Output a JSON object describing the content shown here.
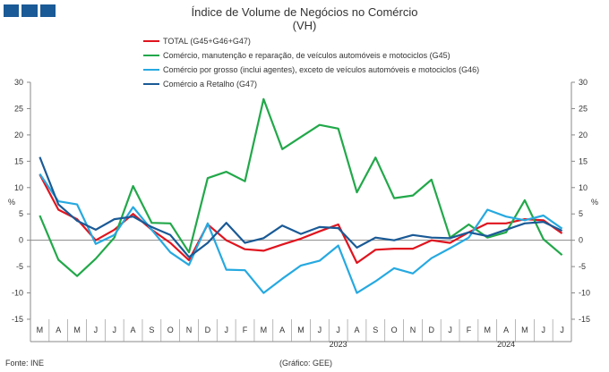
{
  "header": {
    "title": "Índice de Volume de Negócios no Comércio",
    "subtitle": "(VH)"
  },
  "footer": {
    "source": "Fonte: INE",
    "credit": "(Gráfico: GEE)"
  },
  "chart_data": {
    "type": "line",
    "title": "Índice de Volume de Negócios no Comércio",
    "subtitle": "(VH)",
    "ylabel": "%",
    "y2label": "%",
    "ylim": [
      -15,
      30
    ],
    "yticks": [
      -15,
      -10,
      -5,
      0,
      5,
      10,
      15,
      20,
      25,
      30
    ],
    "grid": false,
    "legend_position": "top",
    "categories": [
      "M",
      "A",
      "M",
      "J",
      "J",
      "A",
      "S",
      "O",
      "N",
      "D",
      "J",
      "F",
      "M",
      "A",
      "M",
      "J",
      "J",
      "A",
      "S",
      "O",
      "N",
      "D",
      "J",
      "F",
      "M",
      "A",
      "M",
      "J",
      "J"
    ],
    "year_labels": [
      {
        "label": "2023",
        "index": 16
      },
      {
        "label": "2024",
        "index": 25
      }
    ],
    "series": [
      {
        "name": "TOTAL (G45+G46+G47)",
        "color": "#e0141e",
        "values": [
          12.5,
          5.8,
          4.0,
          0.0,
          2.0,
          5.0,
          2.0,
          -0.5,
          -3.8,
          3.0,
          0.0,
          -1.7,
          -2.0,
          -0.8,
          0.3,
          1.7,
          3.0,
          -4.3,
          -1.8,
          -1.6,
          -1.6,
          0.0,
          -0.5,
          1.5,
          3.2,
          3.2,
          4.0,
          3.8,
          1.3
        ]
      },
      {
        "name": "Comércio, manutenção e reparação, de veículos automóveis e motociclos (G45)",
        "color": "#22a84a",
        "values": [
          4.7,
          -3.7,
          -6.8,
          -3.5,
          0.5,
          10.3,
          3.3,
          3.2,
          -2.3,
          11.8,
          13.0,
          11.2,
          26.8,
          17.3,
          19.6,
          21.9,
          21.2,
          9.1,
          15.7,
          8.0,
          8.5,
          11.5,
          0.5,
          3.0,
          0.5,
          1.5,
          7.6,
          0.2,
          -2.8
        ]
      },
      {
        "name": "Comércio por grosso (inclui agentes), exceto de veículos automóveis e motociclos (G46)",
        "color": "#26a9e0",
        "values": [
          12.6,
          7.4,
          6.8,
          -0.7,
          1.0,
          6.3,
          2.0,
          -2.3,
          -4.7,
          3.2,
          -5.6,
          -5.7,
          -10.0,
          -7.3,
          -4.8,
          -3.9,
          -1.0,
          -10.0,
          -7.8,
          -5.3,
          -6.3,
          -3.4,
          -1.5,
          0.5,
          5.8,
          4.5,
          3.8,
          4.7,
          2.2
        ]
      },
      {
        "name": "Comércio a Retalho (G47)",
        "color": "#1a5a96",
        "values": [
          15.8,
          6.8,
          3.7,
          2.0,
          4.0,
          4.5,
          2.5,
          1.0,
          -3.2,
          -0.5,
          3.3,
          -0.5,
          0.4,
          2.8,
          1.2,
          2.5,
          2.3,
          -1.4,
          0.5,
          0.0,
          1.0,
          0.5,
          0.4,
          1.5,
          0.8,
          2.0,
          3.2,
          3.5,
          1.8
        ]
      }
    ]
  }
}
